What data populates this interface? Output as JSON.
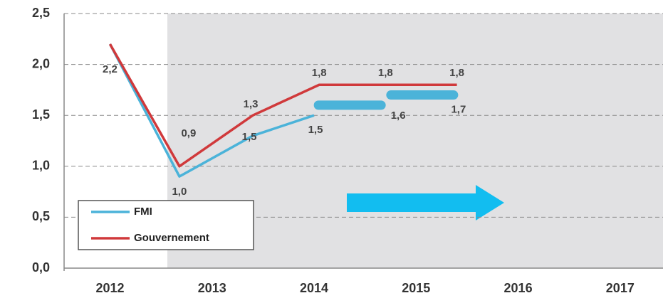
{
  "chart_data": {
    "type": "line",
    "xlim": [
      2011.55,
      2017.42
    ],
    "xticks": [
      2012,
      2013,
      2014,
      2015,
      2016,
      2017
    ],
    "ylim": [
      0,
      2.5
    ],
    "yticks": [
      {
        "value": 0,
        "label": "0,0"
      },
      {
        "value": 0.5,
        "label": "0,5"
      },
      {
        "value": 1,
        "label": "1,0"
      },
      {
        "value": 1.5,
        "label": "1,5"
      },
      {
        "value": 2,
        "label": "2,0"
      },
      {
        "value": 2.5,
        "label": "2,5"
      }
    ],
    "grid": true,
    "legend": "lower left",
    "series": [
      {
        "name": "FMI",
        "color": "#4bb3d9",
        "x": [
          2012,
          2012.68,
          2013.4,
          2014.0,
          2014.35,
          2015.06
        ],
        "values": [
          2.2,
          0.9,
          1.3,
          1.5,
          1.6,
          1.7
        ],
        "value_labels": [
          "2,2",
          "0,9",
          "1,3",
          "1,5",
          "1,6",
          "1,7"
        ]
      },
      {
        "name": "Gouvernement",
        "color": "#d0393b",
        "x": [
          2012,
          2012.68,
          2013.4,
          2014.05,
          2014.7,
          2015.4
        ],
        "values": [
          2.2,
          1.0,
          1.5,
          1.8,
          1.8,
          1.8
        ],
        "value_labels": [
          null,
          "1,0",
          "1,5",
          "1,8",
          "1,8",
          "1,8"
        ]
      }
    ]
  }
}
